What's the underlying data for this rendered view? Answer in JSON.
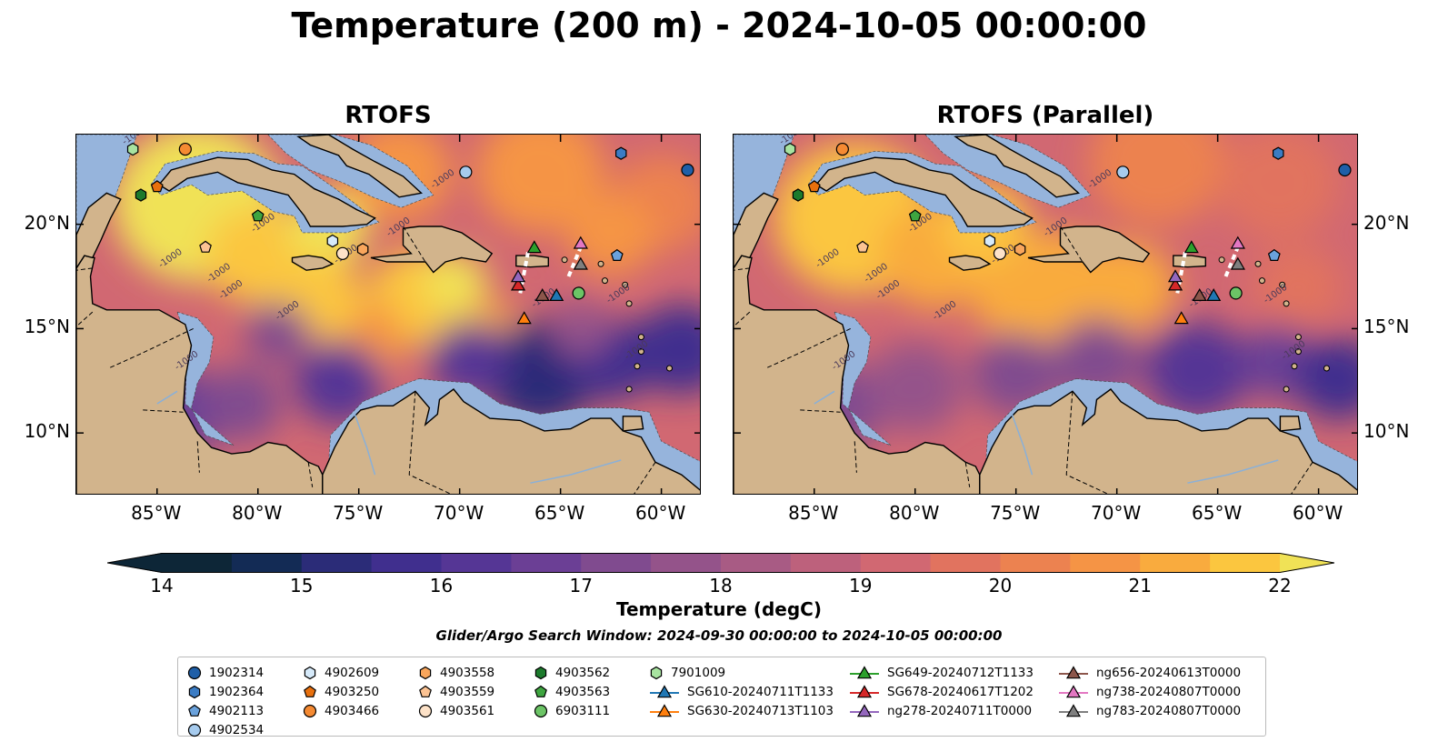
{
  "title": "Temperature (200 m) - 2024-10-05 00:00:00",
  "panels": [
    {
      "id": "rtofs",
      "title": "RTOFS"
    },
    {
      "id": "rtofs-parallel",
      "title": "RTOFS (Parallel)"
    }
  ],
  "map": {
    "lon_range": [
      -89,
      -58
    ],
    "lat_range": [
      7,
      24.3
    ],
    "lon_ticks": [
      {
        "value": -85,
        "label": "85°W"
      },
      {
        "value": -80,
        "label": "80°W"
      },
      {
        "value": -75,
        "label": "75°W"
      },
      {
        "value": -70,
        "label": "70°W"
      },
      {
        "value": -65,
        "label": "65°W"
      },
      {
        "value": -60,
        "label": "60°W"
      }
    ],
    "lat_ticks": [
      {
        "value": 20,
        "label": "20°N"
      },
      {
        "value": 15,
        "label": "15°N"
      },
      {
        "value": 10,
        "label": "10°N"
      }
    ],
    "contour_label": "-1000",
    "colors": {
      "land": "#d2b48c",
      "shelf": "#96b4dc",
      "deep": "#0a2332",
      "coastline": "#000000"
    }
  },
  "colorbar": {
    "label": "Temperature (degC)",
    "min": 14,
    "max": 22,
    "step": 0.5,
    "ticks": [
      "14",
      "15",
      "16",
      "17",
      "18",
      "19",
      "20",
      "21",
      "22"
    ],
    "colors": [
      "#0d2637",
      "#132b55",
      "#2b2c78",
      "#402f8e",
      "#553695",
      "#6b3f95",
      "#804b8f",
      "#94538a",
      "#a85b84",
      "#bd617c",
      "#d16872",
      "#e1735f",
      "#ec8250",
      "#f59445",
      "#f9ab3e",
      "#fbc63f",
      "#f0e256"
    ]
  },
  "search_window": "Glider/Argo Search Window: 2024-09-30 00:00:00 to 2024-10-05 00:00:00",
  "legend": {
    "columns": [
      [
        {
          "label": "1902314",
          "marker": "circle",
          "color": "#1f5fa8"
        },
        {
          "label": "1902364",
          "marker": "hexagon",
          "color": "#3b7cc4"
        },
        {
          "label": "4902113",
          "marker": "pentagon",
          "color": "#6aa2dc"
        },
        {
          "label": "4902534",
          "marker": "circle",
          "color": "#a6cbee"
        }
      ],
      [
        {
          "label": "4902609",
          "marker": "hexagon",
          "color": "#d6eafa"
        },
        {
          "label": "4903250",
          "marker": "pentagon",
          "color": "#e8700e"
        },
        {
          "label": "4903466",
          "marker": "circle",
          "color": "#f58a32"
        }
      ],
      [
        {
          "label": "4903558",
          "marker": "hexagon",
          "color": "#f9a65c"
        },
        {
          "label": "4903559",
          "marker": "pentagon",
          "color": "#fcc393"
        },
        {
          "label": "4903561",
          "marker": "circle",
          "color": "#fde2c8"
        }
      ],
      [
        {
          "label": "4903562",
          "marker": "hexagon",
          "color": "#1c7a2c"
        },
        {
          "label": "4903563",
          "marker": "pentagon",
          "color": "#3ea540"
        },
        {
          "label": "6903111",
          "marker": "circle",
          "color": "#6cc466"
        }
      ],
      [
        {
          "label": "7901009",
          "marker": "hexagon",
          "color": "#a8e3a0"
        },
        {
          "label": "SG610-20240711T1133",
          "marker": "triangle",
          "color": "#1f77b4"
        },
        {
          "label": "SG630-20240713T1103",
          "marker": "triangle",
          "color": "#ff7f0e"
        }
      ],
      [
        {
          "label": "SG649-20240712T1133",
          "marker": "triangle",
          "color": "#2ca02c"
        },
        {
          "label": "SG678-20240617T1202",
          "marker": "triangle",
          "color": "#d62728"
        },
        {
          "label": "ng278-20240711T0000",
          "marker": "triangle",
          "color": "#9467bd"
        }
      ],
      [
        {
          "label": "ng656-20240613T0000",
          "marker": "triangle",
          "color": "#8c564b"
        },
        {
          "label": "ng738-20240807T0000",
          "marker": "triangle",
          "color": "#e377c2"
        },
        {
          "label": "ng783-20240807T0000",
          "marker": "triangle",
          "color": "#7f7f7f"
        }
      ]
    ]
  },
  "observations": [
    {
      "id": "1902314",
      "lon": -58.7,
      "lat": 22.6
    },
    {
      "id": "1902364",
      "lon": -62.0,
      "lat": 23.4
    },
    {
      "id": "4902113",
      "lon": -62.2,
      "lat": 18.5
    },
    {
      "id": "4902534",
      "lon": -69.7,
      "lat": 22.5
    },
    {
      "id": "4902609",
      "lon": -76.3,
      "lat": 19.2
    },
    {
      "id": "4903250",
      "lon": -85.0,
      "lat": 21.8
    },
    {
      "id": "4903466",
      "lon": -83.6,
      "lat": 23.6
    },
    {
      "id": "4903558",
      "lon": -74.8,
      "lat": 18.8
    },
    {
      "id": "4903559",
      "lon": -82.6,
      "lat": 18.9
    },
    {
      "id": "4903561",
      "lon": -75.8,
      "lat": 18.6
    },
    {
      "id": "4903562",
      "lon": -85.8,
      "lat": 21.4
    },
    {
      "id": "4903563",
      "lon": -80.0,
      "lat": 20.4
    },
    {
      "id": "6903111",
      "lon": -64.1,
      "lat": 16.7
    },
    {
      "id": "7901009",
      "lon": -86.2,
      "lat": 23.6
    },
    {
      "id": "SG610-20240711T1133",
      "lon": -65.2,
      "lat": 16.6
    },
    {
      "id": "SG630-20240713T1103",
      "lon": -66.8,
      "lat": 15.5
    },
    {
      "id": "SG649-20240712T1133",
      "lon": -66.3,
      "lat": 18.9
    },
    {
      "id": "SG678-20240617T1202",
      "lon": -67.1,
      "lat": 17.1
    },
    {
      "id": "ng278-20240711T0000",
      "lon": -67.1,
      "lat": 17.5
    },
    {
      "id": "ng656-20240613T0000",
      "lon": -65.9,
      "lat": 16.6
    },
    {
      "id": "ng738-20240807T0000",
      "lon": -64.0,
      "lat": 19.1
    },
    {
      "id": "ng783-20240807T0000",
      "lon": -64.0,
      "lat": 18.1
    }
  ]
}
